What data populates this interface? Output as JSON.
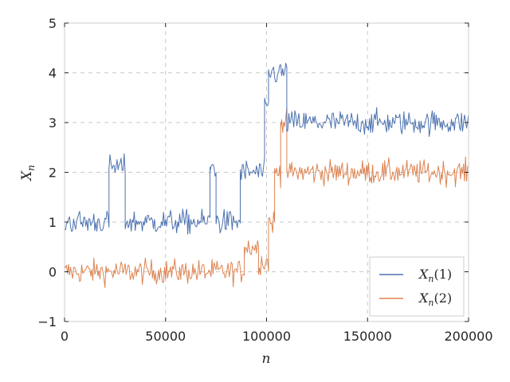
{
  "chart_data": {
    "type": "line",
    "title": "",
    "xlabel": "n",
    "ylabel": "X_n",
    "ylabel_main": "X",
    "ylabel_sub": "n",
    "xlim": [
      0,
      200000
    ],
    "ylim": [
      -1,
      5
    ],
    "x_ticks": [
      0,
      50000,
      100000,
      150000,
      200000
    ],
    "x_tick_labels": [
      "0",
      "50000",
      "100000",
      "150000",
      "200000"
    ],
    "y_ticks": [
      -1,
      0,
      1,
      2,
      3,
      4,
      5
    ],
    "y_tick_labels": [
      "−1",
      "0",
      "1",
      "2",
      "3",
      "4",
      "5"
    ],
    "grid": true,
    "legend_position": "bottom-right",
    "series": [
      {
        "name": "X_n(1)",
        "legend_main": "X",
        "legend_sub": "n",
        "legend_arg": "(1)",
        "color": "#4c72b0",
        "x": [
          0,
          22000,
          22000,
          30000,
          30000,
          72000,
          72000,
          75000,
          75000,
          87000,
          87000,
          99000,
          99000,
          101000,
          101000,
          110000,
          110000,
          200000
        ],
        "values": [
          1.0,
          1.0,
          2.1,
          2.1,
          1.0,
          1.0,
          2.1,
          2.1,
          1.0,
          1.0,
          2.0,
          2.0,
          3.3,
          3.3,
          4.0,
          4.0,
          3.0,
          3.0
        ]
      },
      {
        "name": "X_n(2)",
        "legend_main": "X",
        "legend_sub": "n",
        "legend_arg": "(2)",
        "color": "#dd8452",
        "x": [
          0,
          89000,
          89000,
          96000,
          96000,
          101000,
          101000,
          104000,
          104000,
          107000,
          107000,
          110000,
          110000,
          200000
        ],
        "values": [
          0.0,
          0.0,
          0.5,
          0.5,
          0.2,
          0.2,
          1.0,
          1.0,
          2.0,
          2.0,
          3.0,
          3.0,
          2.0,
          2.0
        ]
      }
    ]
  }
}
